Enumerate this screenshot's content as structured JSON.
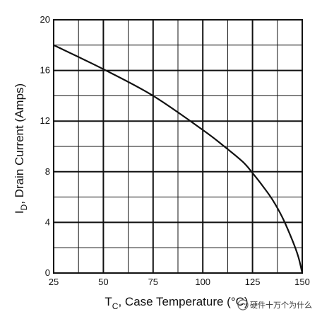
{
  "chart_data": {
    "type": "line",
    "xlabel": {
      "main": "T",
      "sub": "C",
      "rest": ", Case Temperature (°C)"
    },
    "ylabel": {
      "main": "I",
      "sub": "D",
      "rest": ", Drain Current (Amps)"
    },
    "xlim": [
      25,
      150
    ],
    "ylim": [
      0,
      20
    ],
    "x_ticks": [
      "25",
      "50",
      "75",
      "100",
      "125",
      "150"
    ],
    "y_ticks": [
      "0",
      "4",
      "8",
      "12",
      "16",
      "20"
    ],
    "grid": true,
    "series": [
      {
        "x": [
          25,
          50,
          75,
          100,
          110,
          120,
          125,
          130,
          135,
          140,
          145,
          148,
          150
        ],
        "y": [
          18,
          16.1,
          14,
          11.3,
          10.1,
          8.8,
          7.9,
          6.9,
          5.8,
          4.4,
          2.6,
          1.3,
          0
        ]
      }
    ]
  },
  "watermark": {
    "text": "硬件十万个为什么"
  },
  "colors": {
    "line": "#111111",
    "grid": "#111111",
    "background": "#ffffff"
  }
}
